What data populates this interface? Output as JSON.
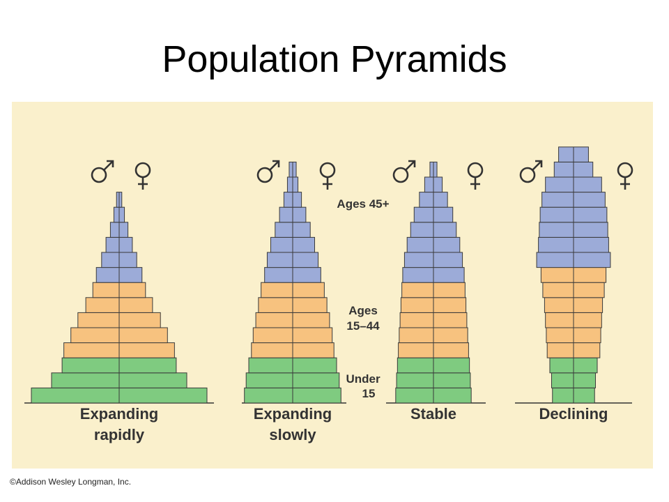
{
  "title": "Population Pyramids",
  "credit": "©Addison Wesley Longman, Inc.",
  "colors": {
    "panel_background": "#faf0cc",
    "ages_45_plus": "#9cabd8",
    "ages_15_44": "#f7c27f",
    "under_15": "#7fcb80",
    "outline": "#3a3a3a"
  },
  "icons": {
    "male": "male-symbol-icon",
    "female": "female-symbol-icon"
  },
  "age_group_labels": {
    "ages_45_plus": "Ages 45+",
    "ages_15_44": [
      "Ages",
      "15–44"
    ],
    "under_15": [
      "Under",
      "15"
    ]
  },
  "chart_data": [
    {
      "type": "bar",
      "name": "Expanding rapidly",
      "label_lines": [
        "Expanding",
        "rapidly"
      ],
      "bars_bottom_to_top": [
        {
          "group": "under_15",
          "value": 1.0
        },
        {
          "group": "under_15",
          "value": 0.77
        },
        {
          "group": "under_15",
          "value": 0.65
        },
        {
          "group": "ages_15_44",
          "value": 0.63
        },
        {
          "group": "ages_15_44",
          "value": 0.55
        },
        {
          "group": "ages_15_44",
          "value": 0.47
        },
        {
          "group": "ages_15_44",
          "value": 0.38
        },
        {
          "group": "ages_15_44",
          "value": 0.3
        },
        {
          "group": "ages_45_plus",
          "value": 0.26
        },
        {
          "group": "ages_45_plus",
          "value": 0.2
        },
        {
          "group": "ages_45_plus",
          "value": 0.15
        },
        {
          "group": "ages_45_plus",
          "value": 0.1
        },
        {
          "group": "ages_45_plus",
          "value": 0.06
        },
        {
          "group": "ages_45_plus",
          "value": 0.03
        }
      ]
    },
    {
      "type": "bar",
      "name": "Expanding slowly",
      "label_lines": [
        "Expanding",
        "slowly"
      ],
      "bars_bottom_to_top": [
        {
          "group": "under_15",
          "value": 0.55
        },
        {
          "group": "under_15",
          "value": 0.53
        },
        {
          "group": "under_15",
          "value": 0.5
        },
        {
          "group": "ages_15_44",
          "value": 0.47
        },
        {
          "group": "ages_15_44",
          "value": 0.45
        },
        {
          "group": "ages_15_44",
          "value": 0.42
        },
        {
          "group": "ages_15_44",
          "value": 0.39
        },
        {
          "group": "ages_15_44",
          "value": 0.36
        },
        {
          "group": "ages_45_plus",
          "value": 0.32
        },
        {
          "group": "ages_45_plus",
          "value": 0.29
        },
        {
          "group": "ages_45_plus",
          "value": 0.25
        },
        {
          "group": "ages_45_plus",
          "value": 0.2
        },
        {
          "group": "ages_45_plus",
          "value": 0.15
        },
        {
          "group": "ages_45_plus",
          "value": 0.1
        },
        {
          "group": "ages_45_plus",
          "value": 0.06
        },
        {
          "group": "ages_45_plus",
          "value": 0.04
        }
      ]
    },
    {
      "type": "bar",
      "name": "Stable",
      "label_lines": [
        "Stable"
      ],
      "bars_bottom_to_top": [
        {
          "group": "under_15",
          "value": 0.43
        },
        {
          "group": "under_15",
          "value": 0.42
        },
        {
          "group": "under_15",
          "value": 0.41
        },
        {
          "group": "ages_15_44",
          "value": 0.4
        },
        {
          "group": "ages_15_44",
          "value": 0.39
        },
        {
          "group": "ages_15_44",
          "value": 0.38
        },
        {
          "group": "ages_15_44",
          "value": 0.37
        },
        {
          "group": "ages_15_44",
          "value": 0.36
        },
        {
          "group": "ages_45_plus",
          "value": 0.35
        },
        {
          "group": "ages_45_plus",
          "value": 0.33
        },
        {
          "group": "ages_45_plus",
          "value": 0.3
        },
        {
          "group": "ages_45_plus",
          "value": 0.26
        },
        {
          "group": "ages_45_plus",
          "value": 0.22
        },
        {
          "group": "ages_45_plus",
          "value": 0.16
        },
        {
          "group": "ages_45_plus",
          "value": 0.1
        },
        {
          "group": "ages_45_plus",
          "value": 0.04
        }
      ]
    },
    {
      "type": "bar",
      "name": "Declining",
      "label_lines": [
        "Declining"
      ],
      "bars_bottom_to_top": [
        {
          "group": "under_15",
          "value": 0.24
        },
        {
          "group": "under_15",
          "value": 0.25
        },
        {
          "group": "under_15",
          "value": 0.27
        },
        {
          "group": "ages_15_44",
          "value": 0.3
        },
        {
          "group": "ages_15_44",
          "value": 0.31
        },
        {
          "group": "ages_15_44",
          "value": 0.32
        },
        {
          "group": "ages_15_44",
          "value": 0.33
        },
        {
          "group": "ages_15_44",
          "value": 0.35
        },
        {
          "group": "ages_15_44",
          "value": 0.37
        },
        {
          "group": "ages_45_plus",
          "value": 0.42
        },
        {
          "group": "ages_45_plus",
          "value": 0.4
        },
        {
          "group": "ages_45_plus",
          "value": 0.39
        },
        {
          "group": "ages_45_plus",
          "value": 0.38
        },
        {
          "group": "ages_45_plus",
          "value": 0.36
        },
        {
          "group": "ages_45_plus",
          "value": 0.32
        },
        {
          "group": "ages_45_plus",
          "value": 0.22
        },
        {
          "group": "ages_45_plus",
          "value": 0.17
        }
      ]
    }
  ]
}
